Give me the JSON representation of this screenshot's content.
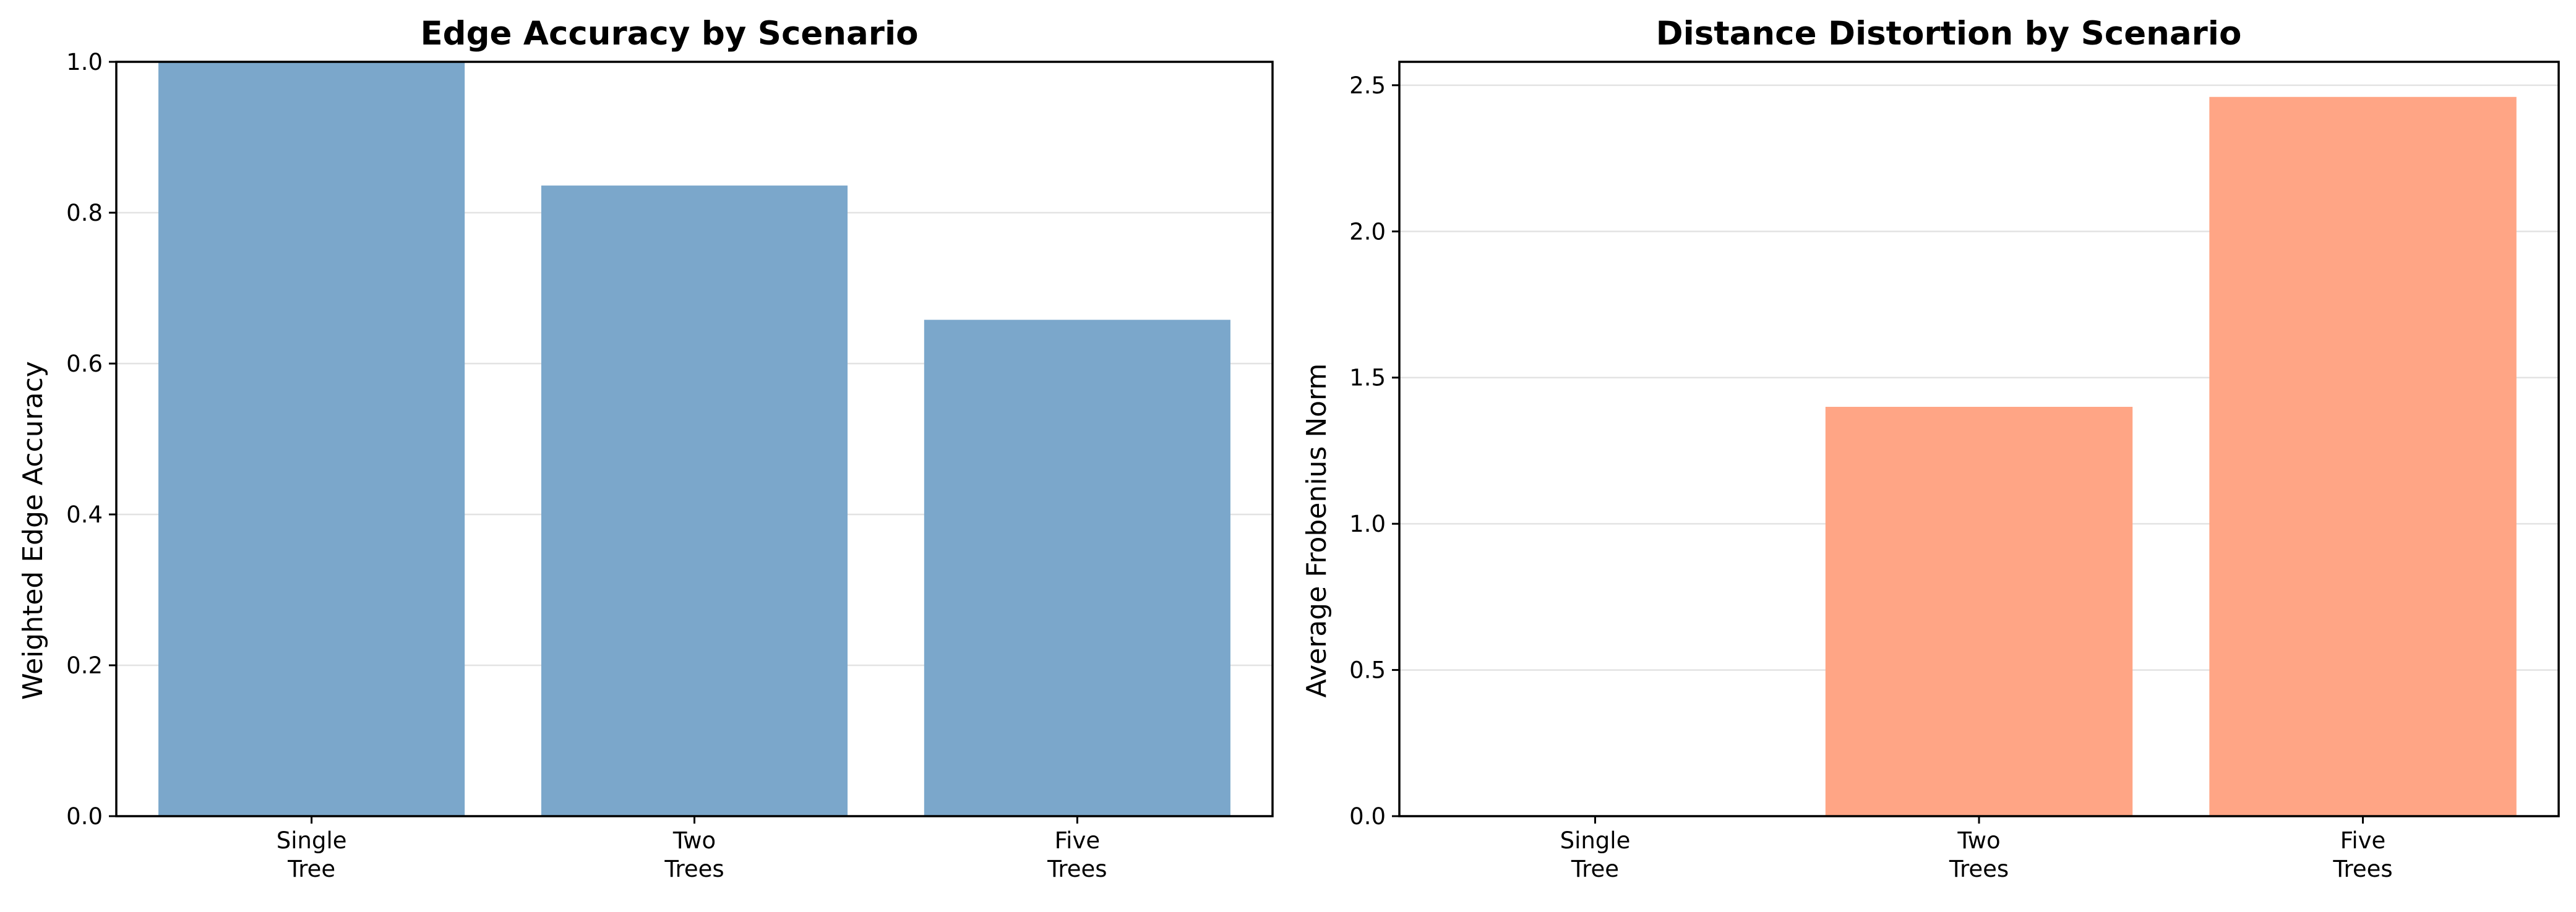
{
  "chart_data": [
    {
      "type": "bar",
      "title": "Edge Accuracy by Scenario",
      "xlabel": "",
      "ylabel": "Weighted Edge Accuracy",
      "categories": [
        [
          "Single",
          "Tree"
        ],
        [
          "Two",
          "Trees"
        ],
        [
          "Five",
          "Trees"
        ]
      ],
      "values": [
        1.0,
        0.836,
        0.658
      ],
      "ylim": [
        0,
        1.0
      ],
      "yticks": [
        "0.0",
        "0.2",
        "0.4",
        "0.6",
        "0.8",
        "1.0"
      ],
      "grid": "y",
      "legend": "none",
      "color": "#7ba7cb"
    },
    {
      "type": "bar",
      "title": "Distance Distortion by Scenario",
      "xlabel": "",
      "ylabel": "Average Frobenius Norm",
      "categories": [
        [
          "Single",
          "Tree"
        ],
        [
          "Two",
          "Trees"
        ],
        [
          "Five",
          "Trees"
        ]
      ],
      "values": [
        0.0,
        1.4,
        2.46
      ],
      "ylim": [
        0,
        2.58
      ],
      "yticks": [
        "0.0",
        "0.5",
        "1.0",
        "1.5",
        "2.0",
        "2.5"
      ],
      "grid": "y",
      "legend": "none",
      "color": "#ffa585"
    }
  ]
}
